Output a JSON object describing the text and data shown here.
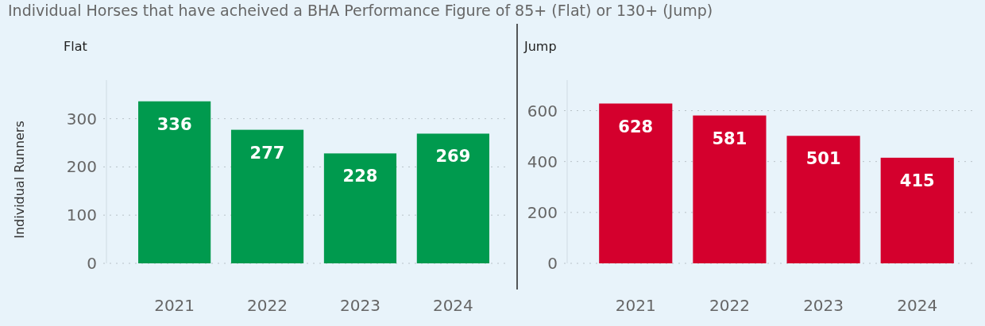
{
  "chart_data": [
    {
      "type": "bar",
      "title": "Individual Horses that have acheived a BHA Performance Figure of 85+ (Flat) or 130+ (Jump)",
      "subtitle": "Flat",
      "ylabel": "Individual Runners",
      "categories": [
        "2021",
        "2022",
        "2023",
        "2024"
      ],
      "values": [
        336,
        277,
        228,
        269
      ],
      "color": "#009a4e",
      "ylim": [
        0,
        380
      ],
      "yticks": [
        0,
        100,
        200,
        300
      ],
      "grid": "y",
      "data_labels": true
    },
    {
      "type": "bar",
      "subtitle": "Jump",
      "categories": [
        "2021",
        "2022",
        "2023",
        "2024"
      ],
      "values": [
        628,
        581,
        501,
        415
      ],
      "color": "#d4002d",
      "ylim": [
        0,
        720
      ],
      "yticks": [
        0,
        200,
        400,
        600
      ],
      "grid": "y",
      "data_labels": true
    }
  ]
}
